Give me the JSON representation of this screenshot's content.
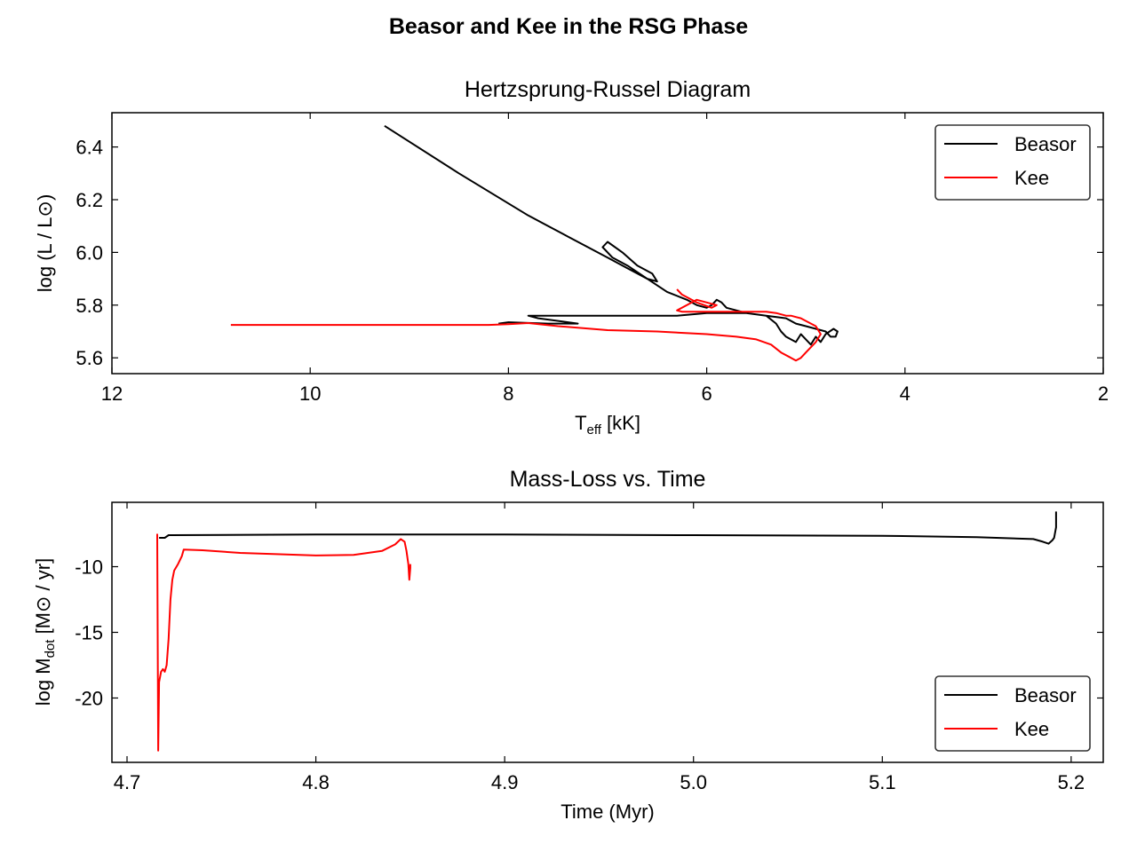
{
  "figure": {
    "suptitle": "Beasor and Kee in the RSG Phase"
  },
  "chart_data": [
    {
      "type": "line",
      "title": "Hertzsprung-Russel Diagram",
      "xlabel": "T",
      "xlabel_sub": "eff",
      "xlabel_unit": " [kK]",
      "ylabel": "log (L / L⊙)",
      "xlim": [
        12,
        2
      ],
      "ylim": [
        5.54,
        6.53
      ],
      "x_inverted": true,
      "xticks": [
        12,
        10,
        8,
        6,
        4,
        2
      ],
      "xtick_labels": [
        "12",
        "10",
        "8",
        "6",
        "4",
        "2"
      ],
      "yticks": [
        5.6,
        5.8,
        6.0,
        6.2,
        6.4
      ],
      "ytick_labels": [
        "5.6",
        "5.8",
        "6.0",
        "6.2",
        "6.4"
      ],
      "legend": "top-right",
      "series": [
        {
          "name": "Beasor",
          "color": "#000000",
          "x": [
            9.25,
            8.5,
            7.8,
            7.4,
            7.0,
            6.8,
            6.6,
            6.5,
            6.55,
            6.7,
            6.85,
            7.0,
            7.05,
            6.95,
            6.8,
            6.6,
            6.4,
            6.2,
            6.1,
            6.0,
            5.95,
            5.9,
            5.85,
            5.8,
            5.6,
            5.4,
            5.2,
            5.1,
            5.0,
            4.9,
            4.8,
            4.75,
            4.7,
            4.68,
            4.72,
            4.8,
            4.85,
            4.9,
            4.95,
            5.0,
            5.05,
            5.1,
            5.2,
            5.25,
            5.3,
            5.4,
            5.6,
            5.8,
            6.0,
            6.3,
            6.6,
            7.0,
            7.3,
            7.6,
            7.8,
            7.7,
            7.3,
            7.6,
            8.0,
            8.1
          ],
          "y": [
            6.48,
            6.3,
            6.14,
            6.06,
            5.98,
            5.94,
            5.9,
            5.89,
            5.92,
            5.95,
            6.0,
            6.04,
            6.02,
            5.98,
            5.95,
            5.9,
            5.85,
            5.82,
            5.8,
            5.79,
            5.8,
            5.82,
            5.81,
            5.79,
            5.77,
            5.76,
            5.75,
            5.73,
            5.72,
            5.71,
            5.7,
            5.68,
            5.68,
            5.7,
            5.71,
            5.69,
            5.66,
            5.68,
            5.65,
            5.67,
            5.69,
            5.66,
            5.68,
            5.7,
            5.73,
            5.76,
            5.77,
            5.77,
            5.77,
            5.76,
            5.76,
            5.76,
            5.76,
            5.76,
            5.76,
            5.75,
            5.73,
            5.73,
            5.735,
            5.73
          ]
        },
        {
          "name": "Kee",
          "color": "#ff0000",
          "x": [
            10.8,
            10.0,
            9.0,
            8.2,
            8.0,
            7.8,
            7.5,
            7.0,
            6.5,
            6.0,
            5.7,
            5.5,
            5.35,
            5.25,
            5.15,
            5.1,
            5.05,
            5.0,
            4.95,
            4.9,
            4.85,
            4.9,
            5.0,
            5.05,
            5.1,
            5.15,
            5.2,
            5.25,
            5.3,
            5.4,
            5.5,
            5.7,
            5.9,
            6.1,
            6.25,
            6.3,
            6.2,
            6.1,
            6.0,
            5.9,
            5.95,
            6.1,
            6.2,
            6.25,
            6.3
          ],
          "y": [
            5.725,
            5.725,
            5.725,
            5.725,
            5.728,
            5.732,
            5.72,
            5.705,
            5.7,
            5.69,
            5.68,
            5.67,
            5.65,
            5.62,
            5.6,
            5.59,
            5.6,
            5.62,
            5.64,
            5.66,
            5.69,
            5.72,
            5.74,
            5.75,
            5.755,
            5.76,
            5.76,
            5.765,
            5.77,
            5.775,
            5.775,
            5.775,
            5.775,
            5.775,
            5.775,
            5.78,
            5.8,
            5.82,
            5.81,
            5.8,
            5.79,
            5.81,
            5.83,
            5.84,
            5.86
          ]
        }
      ]
    },
    {
      "type": "line",
      "title": "Mass-Loss vs. Time",
      "xlabel": "Time (Myr)",
      "ylabel": "log M",
      "ylabel_sub": "dot",
      "ylabel_unit": " [M⊙ / yr]",
      "xlim": [
        4.692,
        5.217
      ],
      "ylim": [
        -24.9,
        -5.1
      ],
      "xticks": [
        4.7,
        4.8,
        4.9,
        5.0,
        5.1,
        5.2
      ],
      "xtick_labels": [
        "4.7",
        "4.8",
        "4.9",
        "5.0",
        "5.1",
        "5.2"
      ],
      "yticks": [
        -10,
        -15,
        -20
      ],
      "ytick_labels": [
        "-10",
        "-15",
        "-20"
      ],
      "legend": "bottom-right",
      "series": [
        {
          "name": "Beasor",
          "color": "#000000",
          "x": [
            4.717,
            4.718,
            4.72,
            4.722,
            4.724,
            4.8,
            4.9,
            5.0,
            5.1,
            5.15,
            5.18,
            5.185,
            5.188,
            5.19,
            5.191,
            5.192,
            5.192
          ],
          "y": [
            -7.8,
            -7.8,
            -7.8,
            -7.6,
            -7.6,
            -7.55,
            -7.55,
            -7.6,
            -7.65,
            -7.75,
            -7.9,
            -8.1,
            -8.25,
            -8.0,
            -7.8,
            -7.0,
            -5.8
          ]
        },
        {
          "name": "Kee",
          "color": "#ff0000",
          "x": [
            4.716,
            4.7165,
            4.717,
            4.718,
            4.719,
            4.72,
            4.721,
            4.722,
            4.723,
            4.724,
            4.725,
            4.727,
            4.729,
            4.73,
            4.74,
            4.76,
            4.8,
            4.82,
            4.835,
            4.842,
            4.845,
            4.847,
            4.848,
            4.849,
            4.8495,
            4.85,
            4.85
          ],
          "y": [
            -7.5,
            -24.0,
            -18.8,
            -18.0,
            -17.8,
            -18.0,
            -17.5,
            -15.5,
            -12.5,
            -11.0,
            -10.3,
            -9.8,
            -9.2,
            -8.7,
            -8.75,
            -8.95,
            -9.15,
            -9.1,
            -8.8,
            -8.3,
            -7.9,
            -8.1,
            -8.8,
            -9.8,
            -11.0,
            -10.1,
            -9.8
          ]
        }
      ]
    }
  ]
}
